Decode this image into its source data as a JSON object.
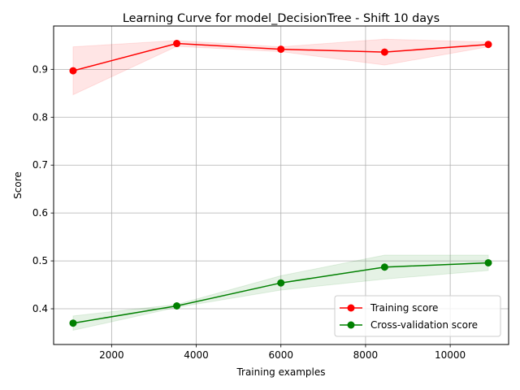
{
  "chart_data": {
    "type": "line",
    "title": "Learning Curve for model_DecisionTree - Shift 10 days",
    "xlabel": "Training examples",
    "ylabel": "Score",
    "xlim": [
      630,
      11380
    ],
    "ylim": [
      0.3254,
      0.9905
    ],
    "x_ticks": [
      2000,
      4000,
      6000,
      8000,
      10000
    ],
    "x_tick_labels": [
      "2000",
      "4000",
      "6000",
      "8000",
      "10000"
    ],
    "y_ticks": [
      0.4,
      0.5,
      0.6,
      0.7,
      0.8,
      0.9
    ],
    "y_tick_labels": [
      "0.4",
      "0.5",
      "0.6",
      "0.7",
      "0.8",
      "0.9"
    ],
    "grid": true,
    "legend_position": "lower-right",
    "x": [
      1090,
      3540,
      6000,
      8450,
      10900
    ],
    "series": [
      {
        "name": "Training score",
        "color": "#ff0000",
        "values": [
          0.897,
          0.954,
          0.942,
          0.936,
          0.952
        ],
        "band_upper": [
          0.947,
          0.96,
          0.947,
          0.963,
          0.957
        ],
        "band_lower": [
          0.847,
          0.948,
          0.937,
          0.909,
          0.947
        ]
      },
      {
        "name": "Cross-validation score",
        "color": "#008000",
        "values": [
          0.37,
          0.406,
          0.454,
          0.487,
          0.496
        ],
        "band_upper": [
          0.385,
          0.409,
          0.469,
          0.512,
          0.512
        ],
        "band_lower": [
          0.355,
          0.403,
          0.439,
          0.462,
          0.48
        ]
      }
    ]
  }
}
